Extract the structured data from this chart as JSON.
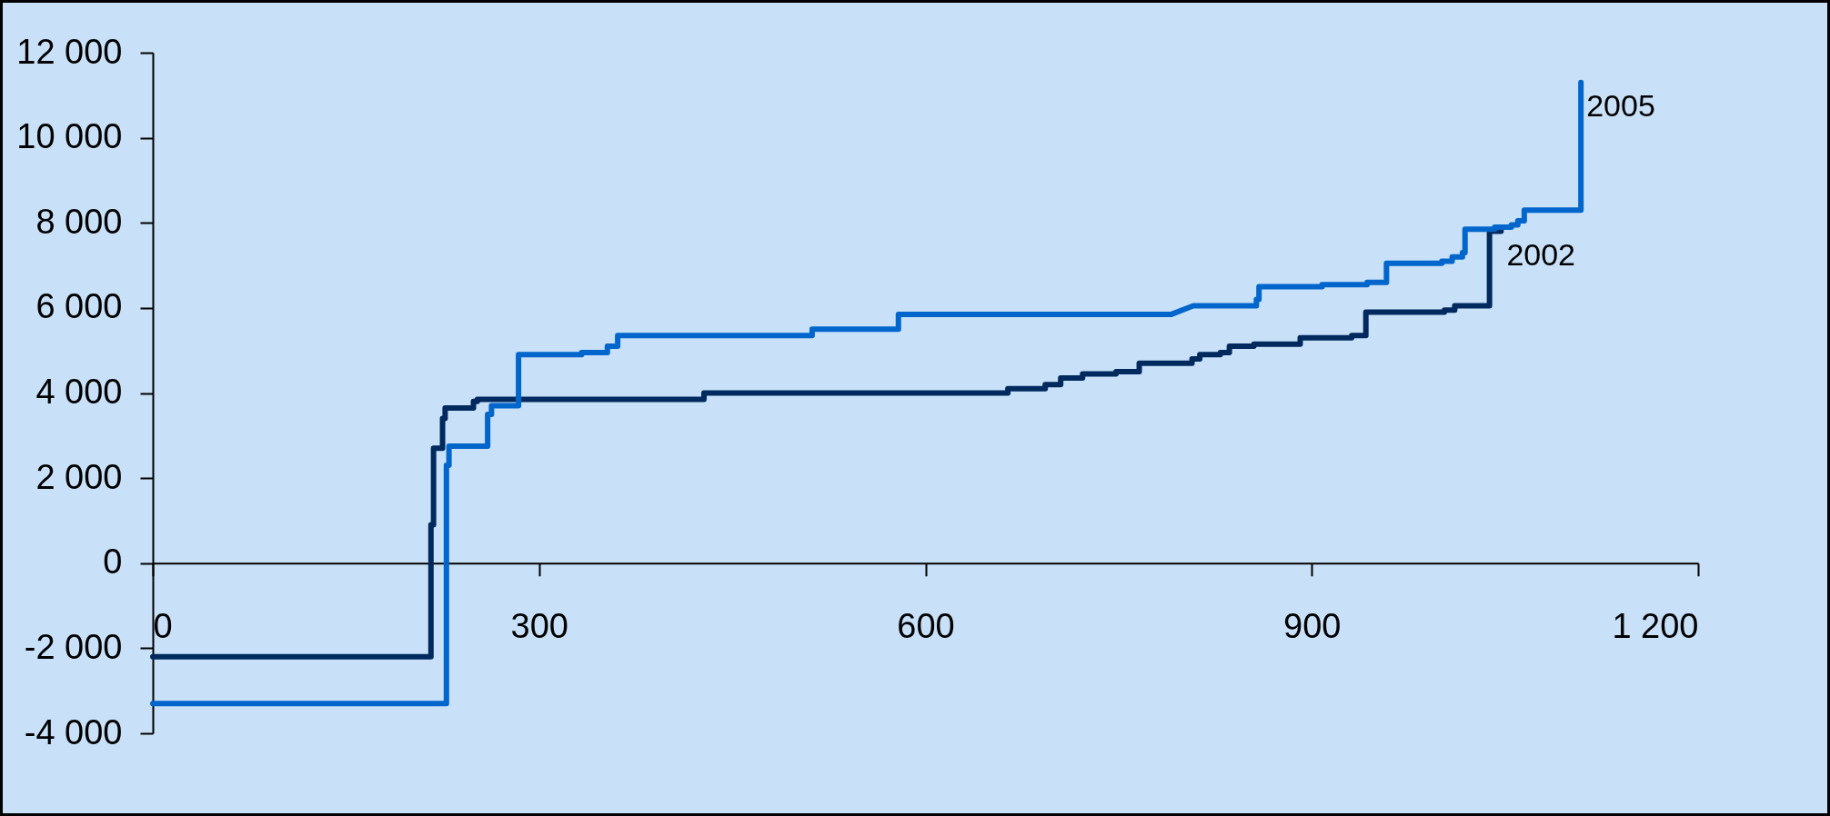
{
  "chart_data": {
    "type": "line",
    "xlim": [
      0,
      1200
    ],
    "ylim": [
      -4000,
      12000
    ],
    "xticks": [
      0,
      300,
      600,
      900,
      {
        "value": 1200,
        "label": "1 200"
      }
    ],
    "yticks": [
      {
        "value": -4000,
        "label": "-4 000"
      },
      {
        "value": -2000,
        "label": "-2 000"
      },
      0,
      {
        "value": 2000,
        "label": "2 000"
      },
      {
        "value": 4000,
        "label": "4 000"
      },
      {
        "value": 6000,
        "label": "6 000"
      },
      {
        "value": 8000,
        "label": "8 000"
      },
      {
        "value": 10000,
        "label": "10 000"
      },
      {
        "value": 12000,
        "label": "12 000"
      }
    ],
    "grid": false,
    "legend": false,
    "marker": "none",
    "line_style": "solid",
    "series": [
      {
        "name": "2002",
        "color": "#002a5e",
        "x": [
          0,
          216,
          216,
          218,
          218,
          225,
          225,
          227,
          227,
          249,
          249,
          252,
          252,
          428,
          428,
          664,
          664,
          693,
          693,
          705,
          705,
          722,
          722,
          748,
          748,
          766,
          766,
          807,
          807,
          813,
          813,
          829,
          829,
          836,
          836,
          855,
          855,
          891,
          891,
          931,
          931,
          942,
          942,
          1003,
          1003,
          1011,
          1011,
          1038,
          1038,
          1047
        ],
        "values": [
          -2200,
          -2200,
          900,
          900,
          2700,
          2700,
          3400,
          3400,
          3650,
          3650,
          3800,
          3800,
          3850,
          3850,
          4000,
          4000,
          4100,
          4100,
          4200,
          4200,
          4350,
          4350,
          4450,
          4450,
          4500,
          4500,
          4700,
          4700,
          4800,
          4800,
          4900,
          4900,
          4950,
          4950,
          5100,
          5100,
          5150,
          5150,
          5300,
          5300,
          5350,
          5350,
          5900,
          5900,
          5950,
          5950,
          6050,
          6050,
          7800,
          7800
        ]
      },
      {
        "name": "2005",
        "color": "#0066cc",
        "x": [
          0,
          228,
          228,
          230,
          230,
          260,
          260,
          263,
          263,
          284,
          284,
          333,
          333,
          353,
          353,
          361,
          361,
          512,
          512,
          579,
          579,
          791,
          808,
          857,
          857,
          859,
          859,
          908,
          908,
          943,
          943,
          958,
          958,
          1001,
          1001,
          1009,
          1009,
          1017,
          1017,
          1019,
          1019,
          1042,
          1042,
          1055,
          1055,
          1060,
          1060,
          1065,
          1065,
          1109,
          1109
        ],
        "values": [
          -3300,
          -3300,
          2300,
          2300,
          2750,
          2750,
          3500,
          3500,
          3700,
          3700,
          4900,
          4900,
          4950,
          4950,
          5100,
          5100,
          5350,
          5350,
          5500,
          5500,
          5850,
          5850,
          6050,
          6050,
          6200,
          6200,
          6500,
          6500,
          6550,
          6550,
          6600,
          6600,
          7050,
          7050,
          7100,
          7100,
          7200,
          7200,
          7300,
          7300,
          7850,
          7850,
          7900,
          7900,
          7950,
          7950,
          8050,
          8050,
          8300,
          8300,
          11300
        ]
      }
    ]
  }
}
